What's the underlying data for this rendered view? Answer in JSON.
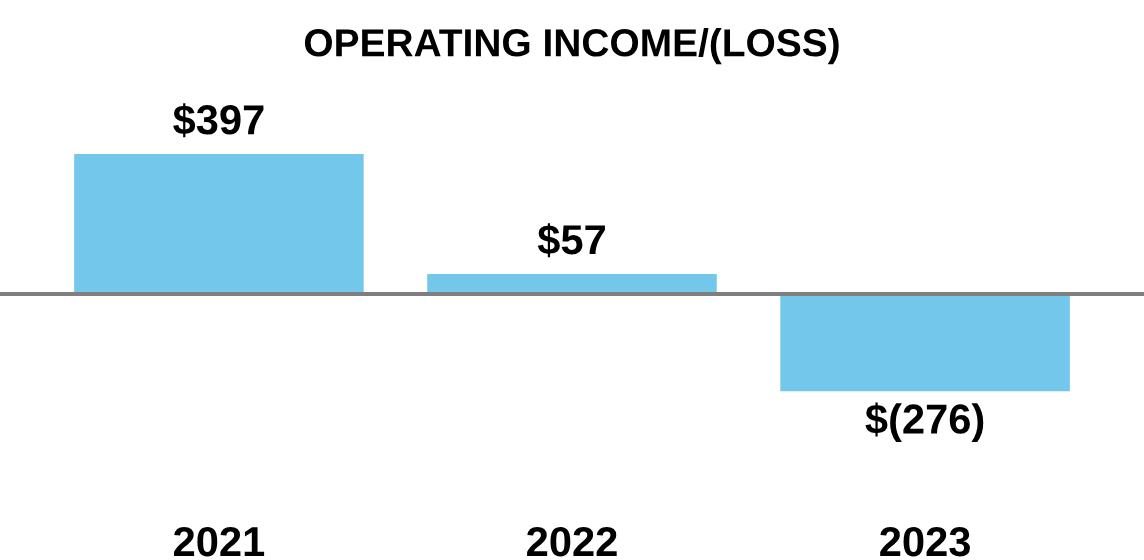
{
  "chart_data": {
    "type": "bar",
    "title": "OPERATING INCOME/(LOSS)",
    "categories": [
      "2021",
      "2022",
      "2023"
    ],
    "values": [
      397,
      57,
      -276
    ],
    "color": "#72c7ea",
    "value_labels": [
      "$397",
      "$57",
      "$(276)"
    ]
  }
}
